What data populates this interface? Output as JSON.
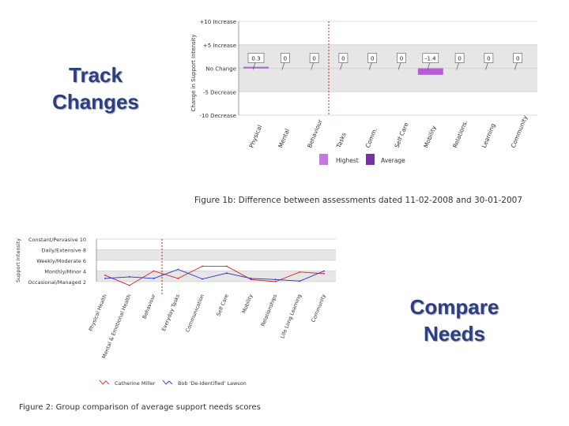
{
  "slide": {
    "label_left": "Track\nChanges",
    "label_right": "Compare\nNeeds"
  },
  "chart_data": [
    {
      "type": "bar",
      "title": "",
      "caption": "Figure 1b: Difference between assessments dated 11-02-2008 and 30-01-2007",
      "ylabel": "Change in Support Intensity",
      "ylim": [
        -10,
        10
      ],
      "y_ticks": [
        "+10 Increase",
        "+5 Increase",
        "No Change",
        "-5 Decrease",
        "-10 Decrease"
      ],
      "y_tick_values": [
        10,
        5,
        0,
        -5,
        -10
      ],
      "categories": [
        "Physical",
        "Mental",
        "Behaviour",
        "Tasks",
        "Comm.",
        "Self Care",
        "Mobility",
        "Relations.",
        "Learning",
        "Community"
      ],
      "values": [
        0.3,
        0,
        0,
        0,
        0,
        0,
        -1.4,
        0,
        0,
        0
      ],
      "value_labels": [
        "0.3",
        "0",
        "0",
        "0",
        "0",
        "0",
        "-1.4",
        "0",
        "0",
        "0"
      ],
      "bar_color": "#b45fd6",
      "legend": [
        "Highest",
        "Average"
      ],
      "legend_colors": [
        "#c27bdc",
        "#7a2fa8"
      ],
      "grid": true
    },
    {
      "type": "line",
      "title": "",
      "caption": "Figure 2: Group comparison of average support needs scores",
      "ylabel": "Support Intensity",
      "ylim": [
        2,
        10
      ],
      "y_ticks": [
        "Constant/Pervasive 10",
        "Daily/Extensive 8",
        "Weekly/Moderate 6",
        "Monthly/Minor 4",
        "Occasional/Managed 2"
      ],
      "y_tick_values": [
        10,
        8,
        6,
        4,
        2
      ],
      "categories": [
        "Physical Health",
        "Mental & Emotional Health",
        "Behaviour",
        "Everyday Tasks",
        "Communication",
        "Self Care",
        "Mobility",
        "Relationships",
        "Life Long Learning",
        "Community"
      ],
      "series": [
        {
          "name": "Catherine Miller",
          "color": "#e02020",
          "values": [
            3.2,
            1.3,
            4.0,
            2.6,
            4.9,
            4.9,
            2.4,
            2.0,
            3.8,
            3.5
          ]
        },
        {
          "name": "Bob 'De-Identified' Lawson",
          "color": "#2030d0",
          "values": [
            2.6,
            2.9,
            2.6,
            4.3,
            2.5,
            3.6,
            2.6,
            2.4,
            2.1,
            4.0
          ]
        }
      ],
      "legend": [
        "Catherine Miller",
        "Bob 'De-Identified' Lawson"
      ],
      "grid": true
    }
  ]
}
